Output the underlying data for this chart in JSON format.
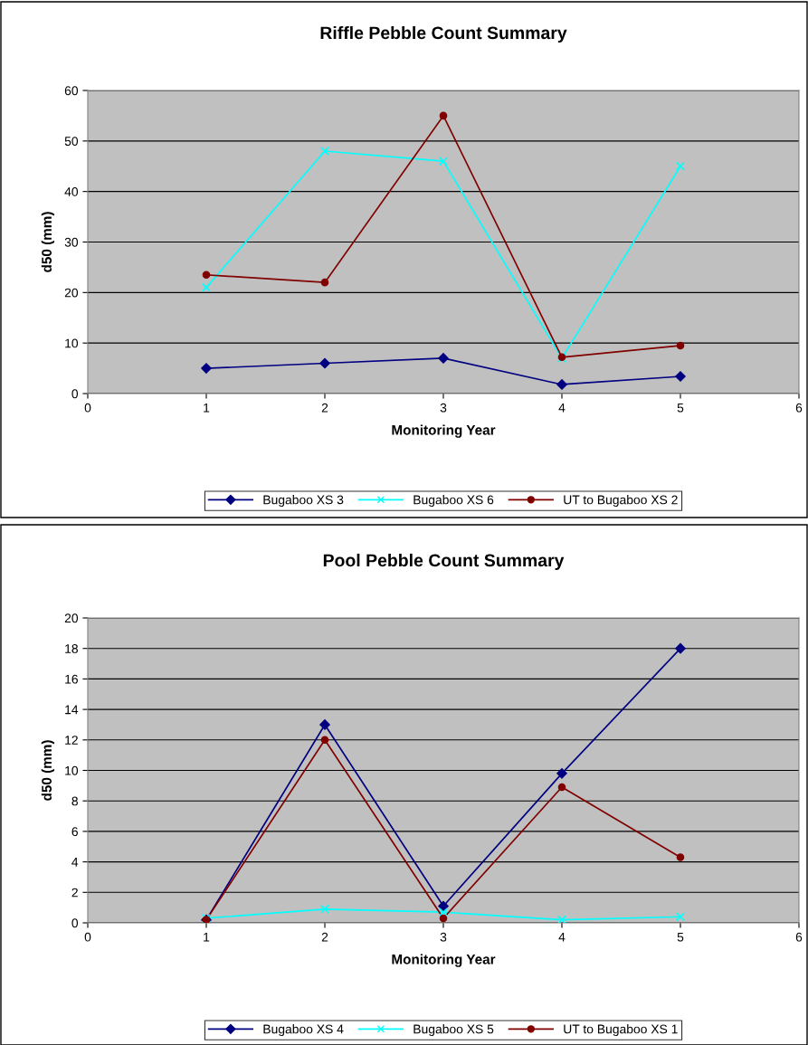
{
  "chart_data": [
    {
      "type": "line",
      "title": "Riffle Pebble Count Summary",
      "xlabel": "Monitoring Year",
      "ylabel": "d50 (mm)",
      "x": [
        1,
        2,
        3,
        4,
        5
      ],
      "xlim": [
        0,
        6
      ],
      "xticks": [
        0,
        1,
        2,
        3,
        4,
        5,
        6
      ],
      "ylim": [
        0,
        60
      ],
      "yticks": [
        0,
        10,
        20,
        30,
        40,
        50,
        60
      ],
      "grid": "y",
      "legend": "bottom",
      "series": [
        {
          "name": "Bugaboo XS 3",
          "color": "#000080",
          "marker": "diamond",
          "values": [
            5,
            6,
            7,
            1.8,
            3.4
          ]
        },
        {
          "name": "Bugaboo XS 6",
          "color": "#00ffff",
          "marker": "cross",
          "values": [
            21,
            48,
            46,
            7,
            45
          ]
        },
        {
          "name": "UT to Bugaboo XS 2",
          "color": "#800000",
          "marker": "circle",
          "values": [
            23.5,
            22,
            55,
            7.2,
            9.5
          ]
        }
      ]
    },
    {
      "type": "line",
      "title": "Pool Pebble Count Summary",
      "xlabel": "Monitoring Year",
      "ylabel": "d50 (mm)",
      "x": [
        1,
        2,
        3,
        4,
        5
      ],
      "xlim": [
        0,
        6
      ],
      "xticks": [
        0,
        1,
        2,
        3,
        4,
        5,
        6
      ],
      "ylim": [
        0,
        20
      ],
      "yticks": [
        0,
        2,
        4,
        6,
        8,
        10,
        12,
        14,
        16,
        18,
        20
      ],
      "grid": "y",
      "legend": "bottom",
      "series": [
        {
          "name": "Bugaboo XS 4",
          "color": "#000080",
          "marker": "diamond",
          "values": [
            0.2,
            13,
            1.1,
            9.8,
            18
          ]
        },
        {
          "name": "Bugaboo XS 5",
          "color": "#00ffff",
          "marker": "cross",
          "values": [
            0.3,
            0.9,
            0.7,
            0.2,
            0.4
          ]
        },
        {
          "name": "UT to Bugaboo XS 1",
          "color": "#800000",
          "marker": "circle",
          "values": [
            0.2,
            12,
            0.3,
            8.9,
            4.3
          ]
        }
      ]
    }
  ]
}
